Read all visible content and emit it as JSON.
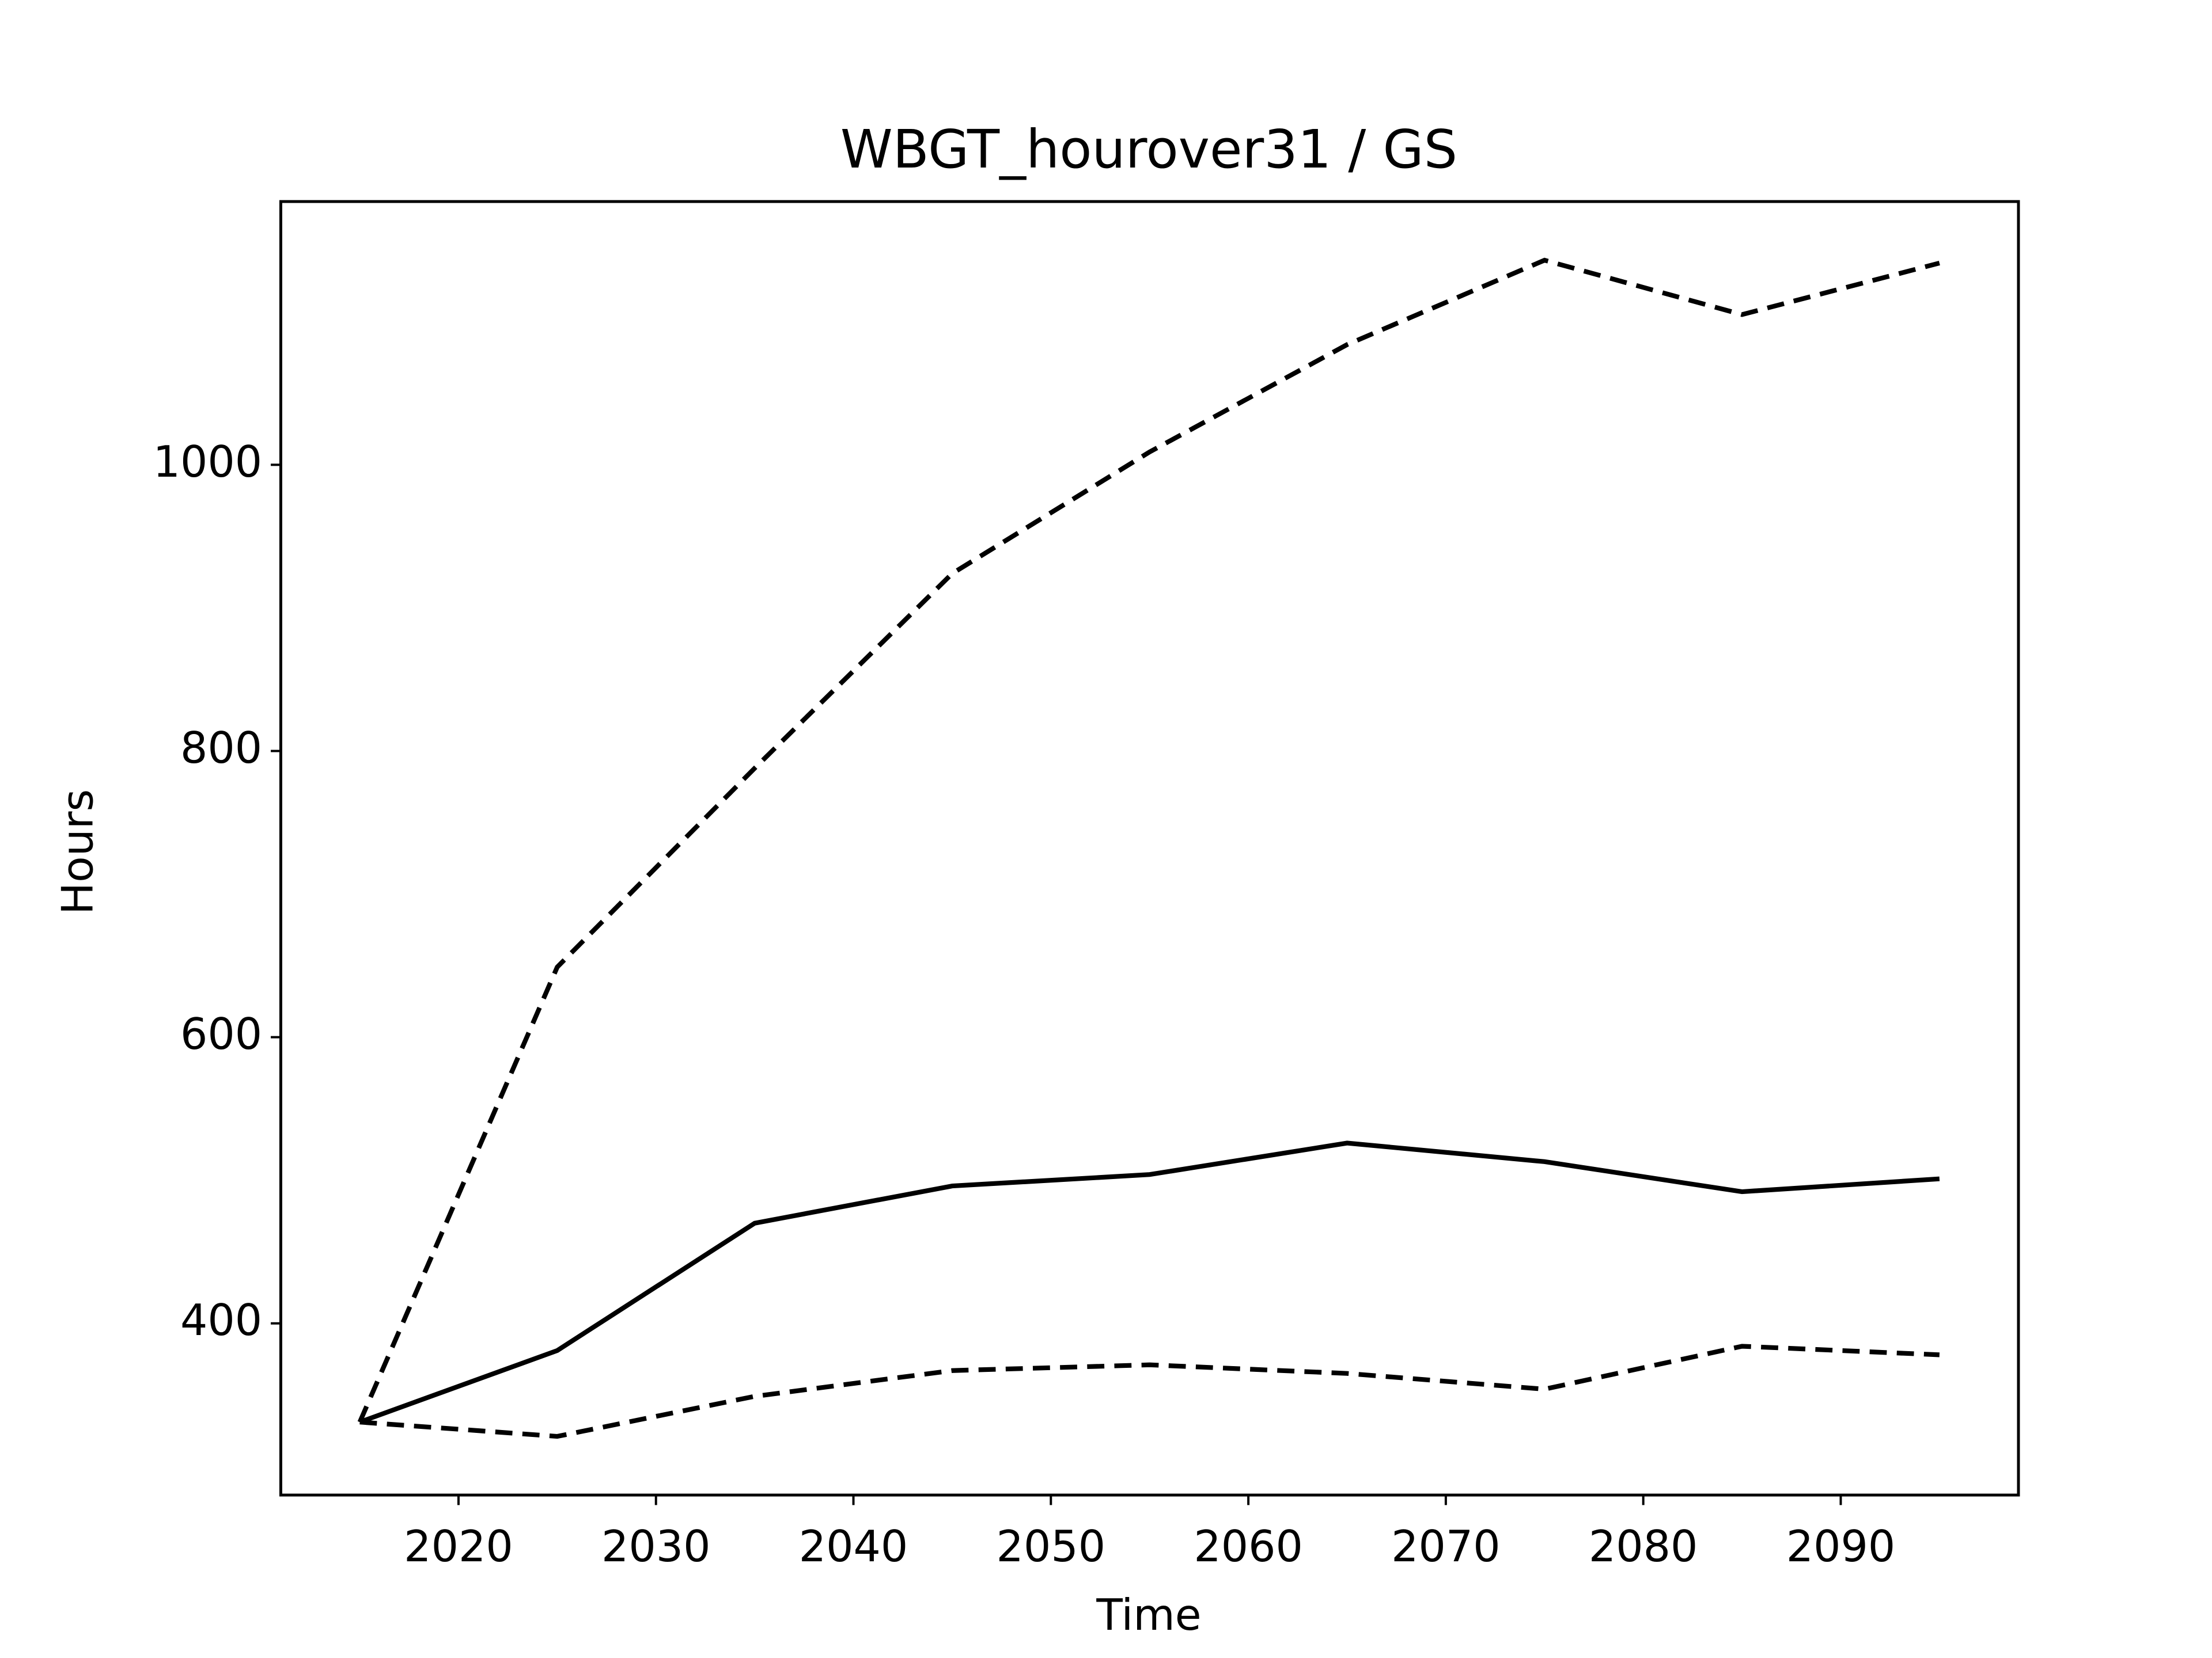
{
  "chart_data": {
    "type": "line",
    "title": "WBGT_hourover31 / GS",
    "xlabel": "Time",
    "ylabel": "Hours",
    "x": [
      2015,
      2025,
      2035,
      2045,
      2055,
      2065,
      2075,
      2085,
      2095
    ],
    "series": [
      {
        "color": "#000000",
        "linestyle": "solid",
        "values": [
          331,
          381,
          470,
          496,
          504,
          526,
          513,
          492,
          501
        ]
      },
      {
        "color": "#000000",
        "linestyle": "dashed",
        "values": [
          331,
          649,
          788,
          924,
          1009,
          1084,
          1143,
          1105,
          1141
        ]
      },
      {
        "color": "#000000",
        "linestyle": "dashed",
        "values": [
          331,
          321,
          349,
          367,
          371,
          365,
          354,
          384,
          378
        ]
      }
    ],
    "xlim": [
      2011,
      2099
    ],
    "xticks": [
      2020,
      2030,
      2040,
      2050,
      2060,
      2070,
      2080,
      2090
    ],
    "ylim": [
      280,
      1184
    ],
    "yticks": [
      400,
      600,
      800,
      1000
    ],
    "grid": false
  }
}
